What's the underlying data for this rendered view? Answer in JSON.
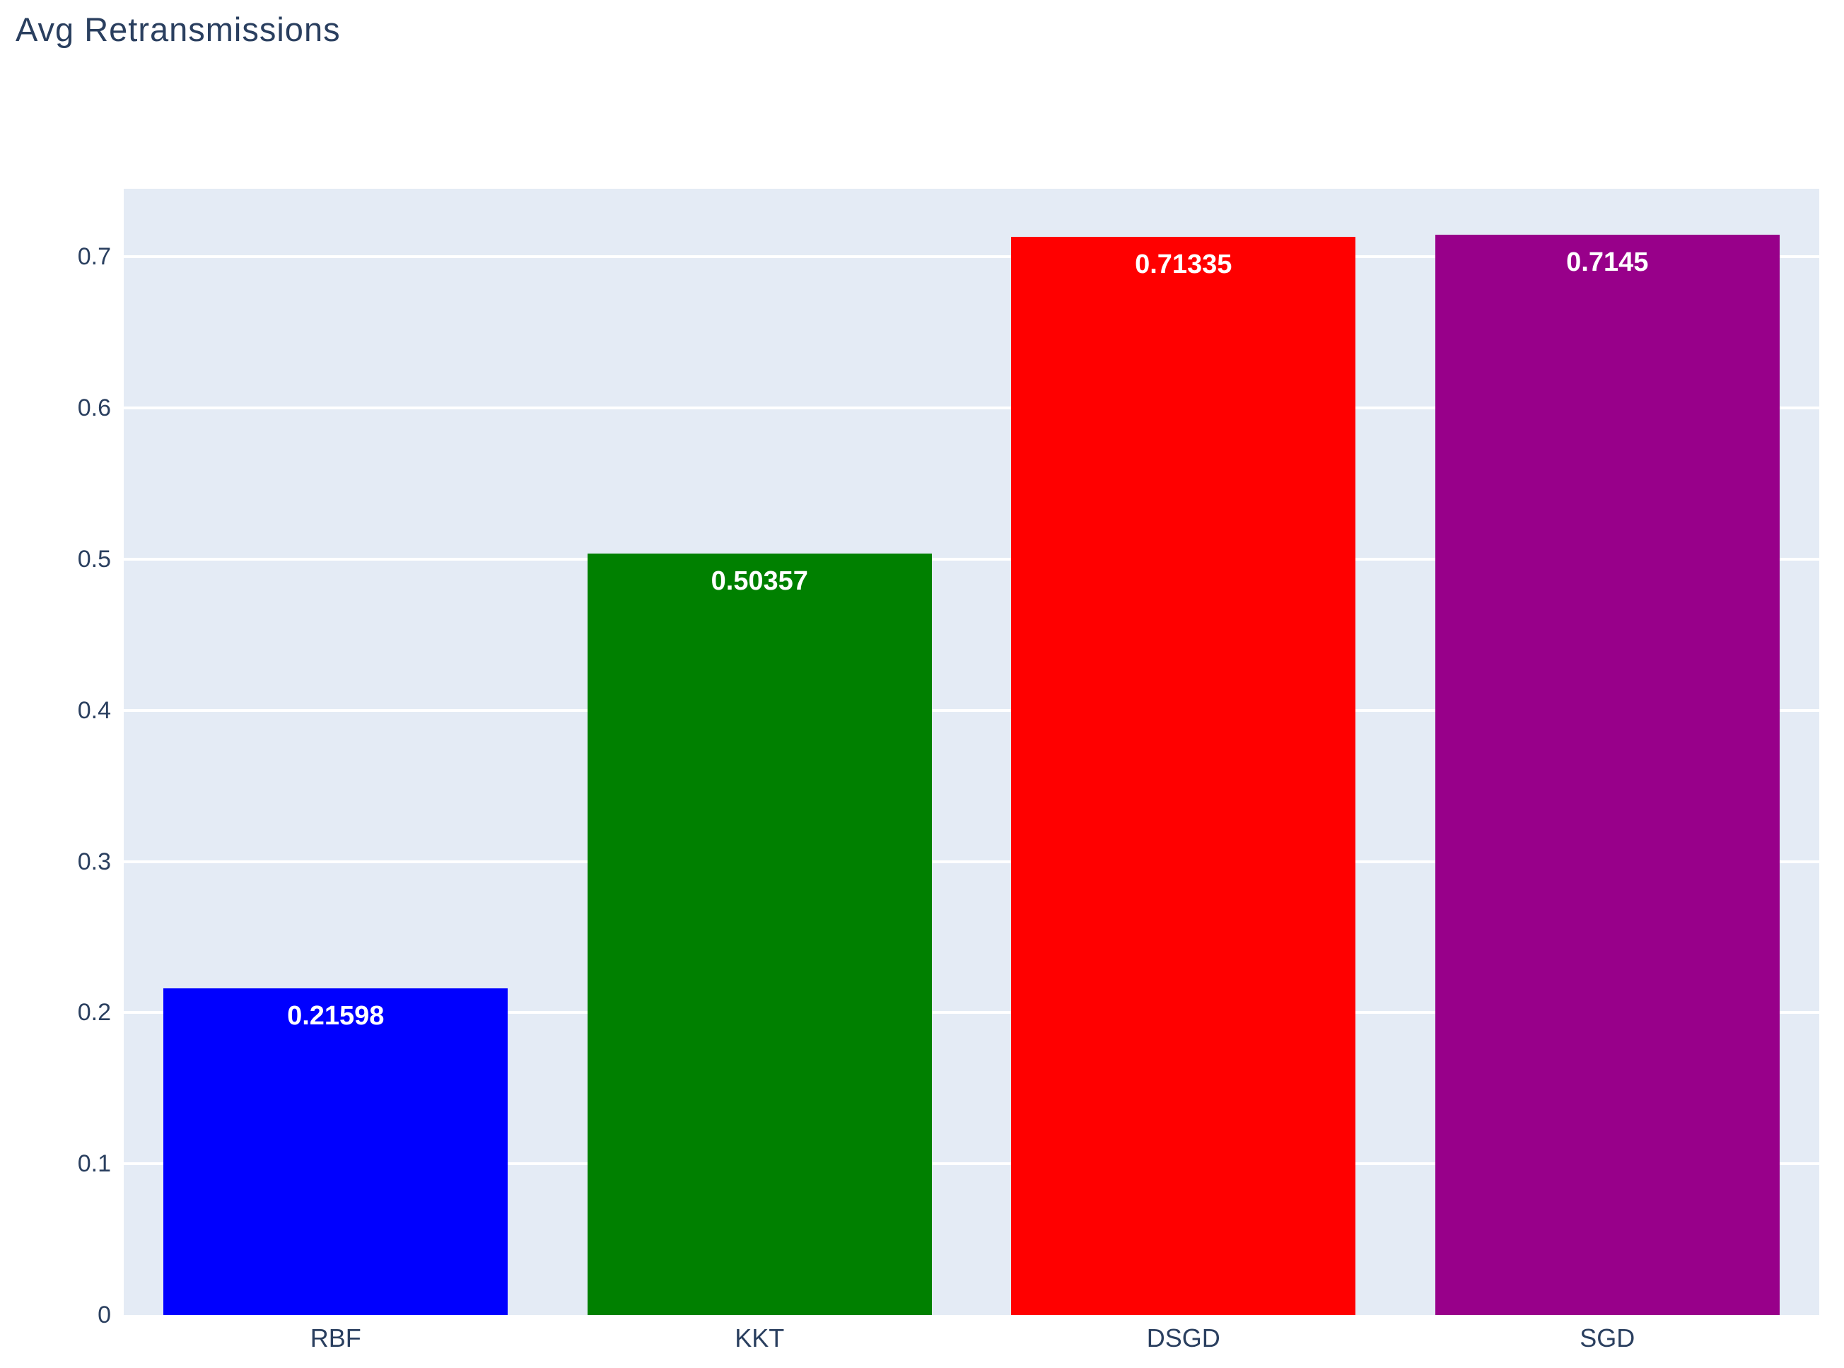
{
  "title": "Avg Retransmissions",
  "chart_data": {
    "type": "bar",
    "title": "Avg Retransmissions",
    "categories": [
      "RBF",
      "KKT",
      "DSGD",
      "SGD"
    ],
    "values": [
      0.21598,
      0.50357,
      0.71335,
      0.7145
    ],
    "value_labels": [
      "0.21598",
      "0.50357",
      "0.71335",
      "0.7145"
    ],
    "bar_colors": [
      "#0000ff",
      "#008000",
      "#ff0000",
      "#98008a"
    ],
    "xlabel": "",
    "ylabel": "",
    "ylim": [
      0,
      0.745
    ],
    "yticks": [
      0,
      0.1,
      0.2,
      0.3,
      0.4,
      0.5,
      0.6,
      0.7
    ],
    "ytick_labels": [
      "0",
      "0.1",
      "0.2",
      "0.3",
      "0.4",
      "0.5",
      "0.6",
      "0.7"
    ],
    "grid": true,
    "legend": false,
    "value_labels_position": "inside-top",
    "colors": {
      "outer_background": "#ffffff",
      "plot_background": "#e4ebf5",
      "gridline": "#ffffff",
      "axis_text": "#2a3f5f",
      "title_text": "#2a3f5f",
      "bar_label_text": "#ffffff"
    }
  }
}
